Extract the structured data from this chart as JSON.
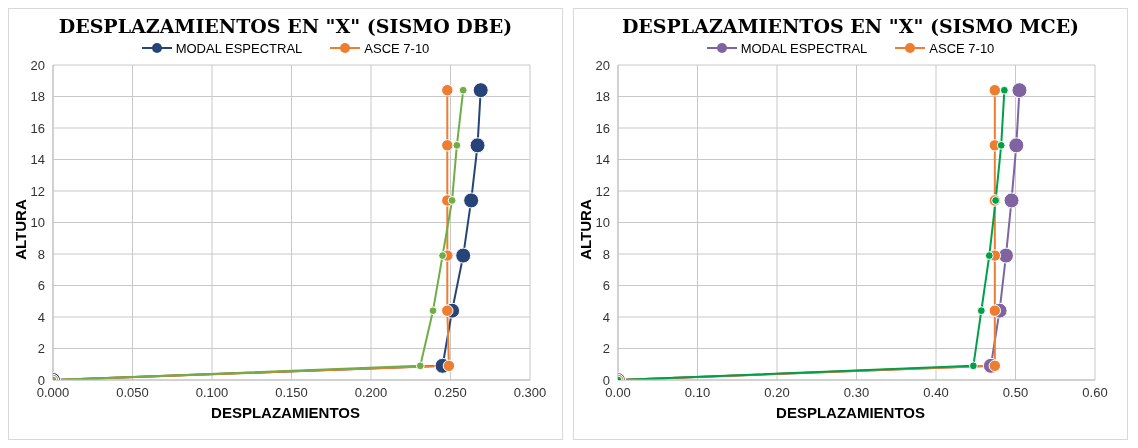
{
  "chart_data": [
    {
      "type": "line",
      "title": "DESPLAZAMIENTOS  EN  \"X\" (SISMO DBE)",
      "xlabel": "DESPLAZAMIENTOS",
      "ylabel": "ALTURA",
      "xlim": [
        0,
        0.3
      ],
      "xticks": [
        {
          "value": 0,
          "label": "0.000"
        },
        {
          "value": 0.05,
          "label": "0.050"
        },
        {
          "value": 0.1,
          "label": "0.100"
        },
        {
          "value": 0.15,
          "label": "0.150"
        },
        {
          "value": 0.2,
          "label": "0.200"
        },
        {
          "value": 0.25,
          "label": "0.250"
        },
        {
          "value": 0.3,
          "label": "0.300"
        }
      ],
      "ylim": [
        0,
        20
      ],
      "yticks": [
        0,
        2,
        4,
        6,
        8,
        10,
        12,
        14,
        16,
        18,
        20
      ],
      "grid": true,
      "legend": "top",
      "marker": "circle",
      "series": [
        {
          "name": "MODAL ESPECTRAL",
          "color": "#264478",
          "x": [
            0,
            0.245,
            0.251,
            0.258,
            0.263,
            0.267,
            0.269
          ],
          "values": [
            0,
            0.9,
            4.4,
            7.9,
            11.4,
            14.9,
            18.4
          ]
        },
        {
          "name": "ASCE 7-10",
          "color": "#ed7d31",
          "x": [
            0,
            0.249,
            0.248,
            0.248,
            0.248,
            0.248,
            0.248
          ],
          "values": [
            0,
            0.9,
            4.4,
            7.9,
            11.4,
            14.9,
            18.4
          ]
        },
        {
          "color": "#70ad47",
          "x": [
            0,
            0.231,
            0.239,
            0.245,
            0.251,
            0.254,
            0.258
          ],
          "values": [
            0,
            0.9,
            4.4,
            7.9,
            11.4,
            14.9,
            18.4
          ]
        }
      ]
    },
    {
      "type": "line",
      "title": "DESPLAZAMIENTOS  EN  \"X\" (SISMO MCE)",
      "xlabel": "DESPLAZAMIENTOS",
      "ylabel": "ALTURA",
      "xlim": [
        0,
        0.6
      ],
      "xticks": [
        {
          "value": 0,
          "label": "0.00"
        },
        {
          "value": 0.1,
          "label": "0.10"
        },
        {
          "value": 0.2,
          "label": "0.20"
        },
        {
          "value": 0.3,
          "label": "0.30"
        },
        {
          "value": 0.4,
          "label": "0.40"
        },
        {
          "value": 0.5,
          "label": "0.50"
        },
        {
          "value": 0.6,
          "label": "0.60"
        }
      ],
      "ylim": [
        0,
        20
      ],
      "yticks": [
        0,
        2,
        4,
        6,
        8,
        10,
        12,
        14,
        16,
        18,
        20
      ],
      "grid": true,
      "legend": "top",
      "marker": "circle",
      "series": [
        {
          "name": "MODAL ESPECTRAL",
          "color": "#8064a2",
          "x": [
            0,
            0.469,
            0.48,
            0.488,
            0.495,
            0.501,
            0.505
          ],
          "values": [
            0,
            0.9,
            4.4,
            7.9,
            11.4,
            14.9,
            18.4
          ]
        },
        {
          "name": "ASCE 7-10",
          "color": "#ed7d31",
          "x": [
            0,
            0.474,
            0.474,
            0.474,
            0.474,
            0.474,
            0.474
          ],
          "values": [
            0,
            0.9,
            4.4,
            7.9,
            11.4,
            14.9,
            18.4
          ]
        },
        {
          "color": "#00a04a",
          "x": [
            0,
            0.447,
            0.457,
            0.467,
            0.475,
            0.482,
            0.486
          ],
          "values": [
            0,
            0.9,
            4.4,
            7.9,
            11.4,
            14.9,
            18.4
          ]
        }
      ]
    }
  ]
}
